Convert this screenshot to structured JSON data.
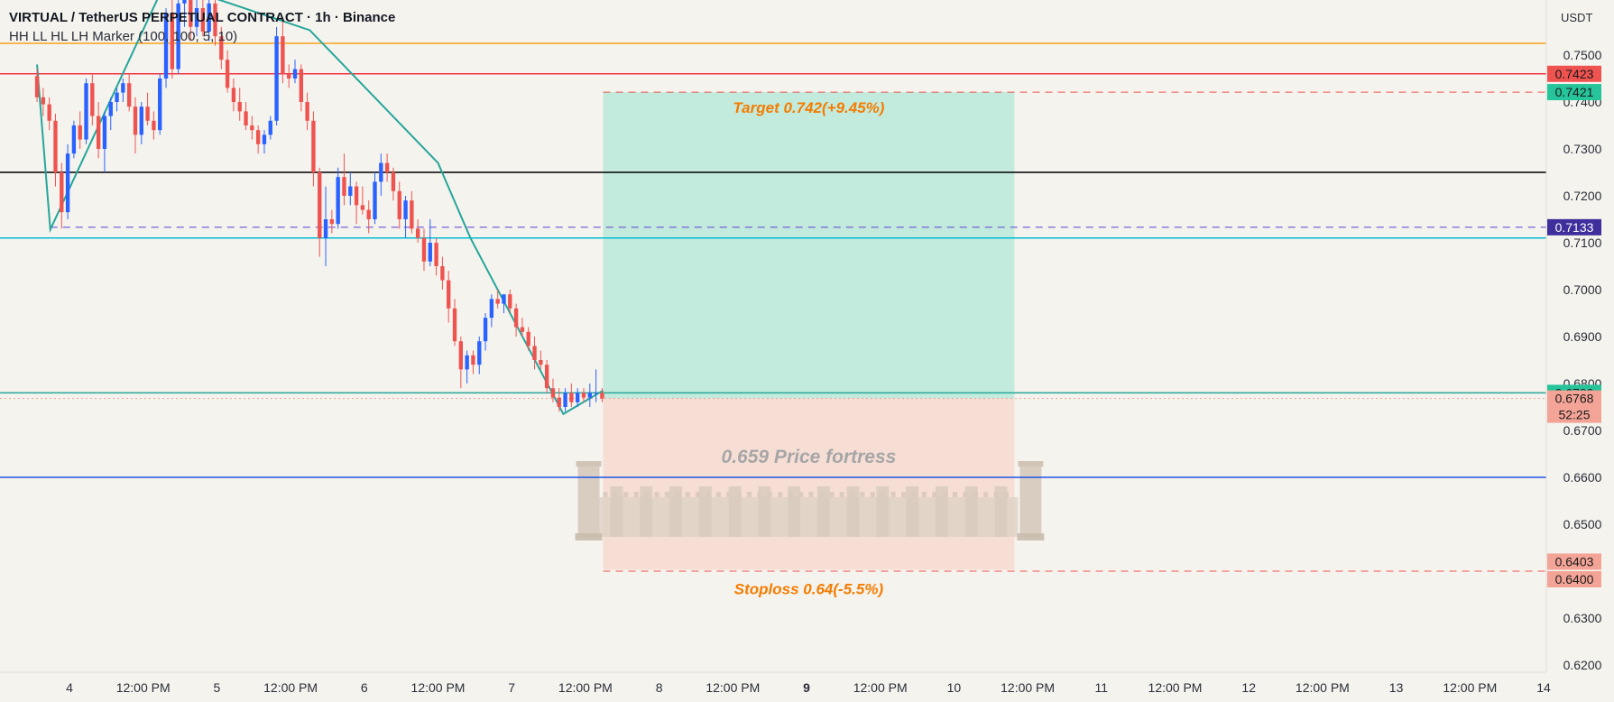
{
  "header": {
    "title": "VIRTUAL / TetherUS PERPETUAL CONTRACT · 1h · Binance",
    "indicator": "HH LL HL LH Marker (100, 100, 5, 10)"
  },
  "currency": "USDT",
  "colors": {
    "background": "#f5f3ee",
    "candle_up": "#2962ff",
    "candle_down": "#ef5350",
    "zigzag": "#26a69a",
    "target_zone": "#bfeadb",
    "stop_zone": "#f7dcd3",
    "annotation_text": "#f57c00",
    "label_red": "#ef5350",
    "label_green": "#26c49a",
    "label_purple": "#3f2f9c",
    "label_salmon": "#f4a497"
  },
  "chart_data": {
    "type": "candlestick",
    "ylim": [
      0.619,
      0.7576
    ],
    "y_ticks": [
      "0.7500",
      "0.7400",
      "0.7300",
      "0.7200",
      "0.7100",
      "0.7000",
      "0.6900",
      "0.6800",
      "0.6700",
      "0.6600",
      "0.6500",
      "0.6300",
      "0.6200"
    ],
    "x_ticks": [
      {
        "label": "4",
        "day": 4.0
      },
      {
        "label": "12:00 PM",
        "day": 4.5
      },
      {
        "label": "5",
        "day": 5.0
      },
      {
        "label": "12:00 PM",
        "day": 5.5
      },
      {
        "label": "6",
        "day": 6.0
      },
      {
        "label": "12:00 PM",
        "day": 6.5
      },
      {
        "label": "7",
        "day": 7.0
      },
      {
        "label": "12:00 PM",
        "day": 7.5
      },
      {
        "label": "8",
        "day": 8.0
      },
      {
        "label": "12:00 PM",
        "day": 8.5
      },
      {
        "label": "9",
        "day": 9.0,
        "bold": true
      },
      {
        "label": "12:00 PM",
        "day": 9.5
      },
      {
        "label": "10",
        "day": 10.0
      },
      {
        "label": "12:00 PM",
        "day": 10.5
      },
      {
        "label": "11",
        "day": 11.0
      },
      {
        "label": "12:00 PM",
        "day": 11.5
      },
      {
        "label": "12",
        "day": 12.0
      },
      {
        "label": "12:00 PM",
        "day": 12.5
      },
      {
        "label": "13",
        "day": 13.0
      },
      {
        "label": "12:00 PM",
        "day": 13.5
      },
      {
        "label": "14",
        "day": 14.0
      }
    ],
    "xlim_days": [
      3.76,
      9.0
    ],
    "candle_start_day": 3.78,
    "candle_hours": 1,
    "ohlc": [
      [
        0.7455,
        0.747,
        0.74,
        0.741
      ],
      [
        0.741,
        0.743,
        0.737,
        0.7395
      ],
      [
        0.7395,
        0.741,
        0.734,
        0.736
      ],
      [
        0.736,
        0.7375,
        0.722,
        0.725
      ],
      [
        0.725,
        0.727,
        0.713,
        0.7165
      ],
      [
        0.7165,
        0.731,
        0.715,
        0.729
      ],
      [
        0.729,
        0.736,
        0.728,
        0.735
      ],
      [
        0.735,
        0.738,
        0.73,
        0.732
      ],
      [
        0.732,
        0.745,
        0.731,
        0.744
      ],
      [
        0.744,
        0.746,
        0.735,
        0.737
      ],
      [
        0.737,
        0.74,
        0.728,
        0.73
      ],
      [
        0.73,
        0.738,
        0.725,
        0.737
      ],
      [
        0.737,
        0.741,
        0.734,
        0.74
      ],
      [
        0.74,
        0.743,
        0.738,
        0.742
      ],
      [
        0.742,
        0.745,
        0.74,
        0.744
      ],
      [
        0.744,
        0.746,
        0.738,
        0.739
      ],
      [
        0.739,
        0.741,
        0.729,
        0.733
      ],
      [
        0.733,
        0.74,
        0.731,
        0.739
      ],
      [
        0.739,
        0.742,
        0.735,
        0.736
      ],
      [
        0.736,
        0.738,
        0.732,
        0.734
      ],
      [
        0.734,
        0.746,
        0.733,
        0.745
      ],
      [
        0.745,
        0.76,
        0.743,
        0.759
      ],
      [
        0.759,
        0.762,
        0.745,
        0.747
      ],
      [
        0.747,
        0.764,
        0.746,
        0.761
      ],
      [
        0.761,
        0.764,
        0.756,
        0.762
      ],
      [
        0.762,
        0.763,
        0.753,
        0.756
      ],
      [
        0.756,
        0.762,
        0.754,
        0.76
      ],
      [
        0.76,
        0.763,
        0.754,
        0.755
      ],
      [
        0.755,
        0.763,
        0.753,
        0.761
      ],
      [
        0.761,
        0.762,
        0.752,
        0.754
      ],
      [
        0.754,
        0.756,
        0.747,
        0.749
      ],
      [
        0.749,
        0.751,
        0.742,
        0.743
      ],
      [
        0.743,
        0.745,
        0.738,
        0.74
      ],
      [
        0.74,
        0.743,
        0.736,
        0.738
      ],
      [
        0.738,
        0.74,
        0.734,
        0.735
      ],
      [
        0.735,
        0.737,
        0.732,
        0.734
      ],
      [
        0.734,
        0.735,
        0.729,
        0.731
      ],
      [
        0.731,
        0.734,
        0.729,
        0.733
      ],
      [
        0.733,
        0.737,
        0.732,
        0.736
      ],
      [
        0.736,
        0.756,
        0.735,
        0.754
      ],
      [
        0.754,
        0.758,
        0.744,
        0.746
      ],
      [
        0.746,
        0.748,
        0.743,
        0.745
      ],
      [
        0.745,
        0.749,
        0.744,
        0.747
      ],
      [
        0.747,
        0.748,
        0.738,
        0.74
      ],
      [
        0.74,
        0.742,
        0.734,
        0.736
      ],
      [
        0.736,
        0.738,
        0.722,
        0.725
      ],
      [
        0.725,
        0.726,
        0.707,
        0.711
      ],
      [
        0.711,
        0.722,
        0.705,
        0.715
      ],
      [
        0.715,
        0.717,
        0.712,
        0.714
      ],
      [
        0.714,
        0.726,
        0.713,
        0.724
      ],
      [
        0.724,
        0.729,
        0.718,
        0.72
      ],
      [
        0.72,
        0.725,
        0.718,
        0.722
      ],
      [
        0.722,
        0.723,
        0.714,
        0.718
      ],
      [
        0.718,
        0.722,
        0.716,
        0.717
      ],
      [
        0.717,
        0.719,
        0.712,
        0.715
      ],
      [
        0.715,
        0.725,
        0.714,
        0.723
      ],
      [
        0.723,
        0.729,
        0.72,
        0.727
      ],
      [
        0.727,
        0.729,
        0.723,
        0.725
      ],
      [
        0.725,
        0.726,
        0.719,
        0.721
      ],
      [
        0.721,
        0.723,
        0.713,
        0.715
      ],
      [
        0.715,
        0.72,
        0.711,
        0.719
      ],
      [
        0.719,
        0.721,
        0.712,
        0.713
      ],
      [
        0.713,
        0.715,
        0.71,
        0.711
      ],
      [
        0.711,
        0.713,
        0.704,
        0.706
      ],
      [
        0.706,
        0.715,
        0.705,
        0.71
      ],
      [
        0.71,
        0.711,
        0.703,
        0.705
      ],
      [
        0.705,
        0.707,
        0.7,
        0.702
      ],
      [
        0.702,
        0.704,
        0.693,
        0.696
      ],
      [
        0.696,
        0.698,
        0.688,
        0.689
      ],
      [
        0.689,
        0.69,
        0.679,
        0.683
      ],
      [
        0.683,
        0.687,
        0.68,
        0.686
      ],
      [
        0.686,
        0.687,
        0.682,
        0.684
      ],
      [
        0.684,
        0.69,
        0.682,
        0.689
      ],
      [
        0.689,
        0.695,
        0.687,
        0.694
      ],
      [
        0.694,
        0.699,
        0.692,
        0.698
      ],
      [
        0.698,
        0.7,
        0.696,
        0.697
      ],
      [
        0.697,
        0.699,
        0.695,
        0.699
      ],
      [
        0.699,
        0.7,
        0.695,
        0.696
      ],
      [
        0.696,
        0.697,
        0.69,
        0.692
      ],
      [
        0.692,
        0.694,
        0.69,
        0.691
      ],
      [
        0.691,
        0.692,
        0.687,
        0.688
      ],
      [
        0.688,
        0.69,
        0.683,
        0.685
      ],
      [
        0.685,
        0.687,
        0.683,
        0.684
      ],
      [
        0.684,
        0.685,
        0.678,
        0.679
      ],
      [
        0.679,
        0.681,
        0.676,
        0.677
      ],
      [
        0.677,
        0.679,
        0.674,
        0.675
      ],
      [
        0.675,
        0.679,
        0.674,
        0.678
      ],
      [
        0.678,
        0.68,
        0.675,
        0.676
      ],
      [
        0.676,
        0.679,
        0.675,
        0.678
      ],
      [
        0.678,
        0.679,
        0.676,
        0.677
      ],
      [
        0.677,
        0.68,
        0.675,
        0.678
      ],
      [
        0.678,
        0.683,
        0.676,
        0.678
      ],
      [
        0.678,
        0.679,
        0.676,
        0.6768
      ]
    ],
    "zigzag": [
      {
        "day": 3.78,
        "price": 0.748
      },
      {
        "day": 3.87,
        "price": 0.7128
      },
      {
        "day": 4.61,
        "price": 0.7628
      },
      {
        "day": 4.88,
        "price": 0.7632
      },
      {
        "day": 5.63,
        "price": 0.7553
      },
      {
        "day": 6.5,
        "price": 0.727
      },
      {
        "day": 6.72,
        "price": 0.711
      },
      {
        "day": 7.35,
        "price": 0.6735
      },
      {
        "day": 7.62,
        "price": 0.6785
      }
    ],
    "horizontal_lines": [
      {
        "price": 0.7525,
        "color": "#f7a21b",
        "style": "solid",
        "width": 1.5
      },
      {
        "price": 0.746,
        "color": "#f23645",
        "style": "solid",
        "width": 1.5
      },
      {
        "price": 0.7421,
        "color": "#ef5350",
        "style": "dashed",
        "width": 1,
        "from_day": 7.62
      },
      {
        "price": 0.725,
        "color": "#000000",
        "style": "solid",
        "width": 1.5
      },
      {
        "price": 0.7133,
        "color": "#5b3fd1",
        "style": "dashed",
        "width": 1,
        "from_day": 3.87
      },
      {
        "price": 0.711,
        "color": "#00bcd4",
        "style": "solid",
        "width": 1.5
      },
      {
        "price": 0.678,
        "color": "#26a69a",
        "style": "solid",
        "width": 1.5
      },
      {
        "price": 0.6768,
        "color": "#ef9a9a",
        "style": "dotted",
        "width": 1
      },
      {
        "price": 0.66,
        "color": "#1e53e5",
        "style": "solid",
        "width": 1.5
      },
      {
        "price": 0.64,
        "color": "#ef5350",
        "style": "dashed",
        "width": 1,
        "from_day": 7.62
      }
    ],
    "position": {
      "entry": 0.6768,
      "target": 0.7421,
      "stop": 0.6403,
      "from_day": 7.62,
      "to_day": 10.41
    },
    "annotations": {
      "target": "Target 0.742(+9.45%)",
      "fortress": "0.659 Price fortress",
      "stoploss": "Stoploss 0.64(-5.5%)"
    },
    "price_labels": [
      {
        "text": "0.7423",
        "price": 0.746,
        "bg": "#ef5350",
        "color": "#1a1a1a"
      },
      {
        "text": "0.7421",
        "price": 0.7421,
        "bg": "#26c49a",
        "color": "#1a1a1a"
      },
      {
        "text": "0.7133",
        "price": 0.7133,
        "bg": "#3f2f9c",
        "color": "#ffffff"
      },
      {
        "text": "0.6780",
        "price": 0.678,
        "bg": "#26c49a",
        "color": "#1a1a1a"
      },
      {
        "text": "0.6768",
        "price": 0.6768,
        "bg": "#f4a497",
        "color": "#1a1a1a",
        "sub": "52:25"
      },
      {
        "text": "0.6403",
        "price": 0.6403,
        "bg": "#f4a497",
        "color": "#1a1a1a"
      },
      {
        "text": "0.6400",
        "price": 0.64,
        "bg": "#f4a497",
        "color": "#1a1a1a"
      }
    ]
  }
}
